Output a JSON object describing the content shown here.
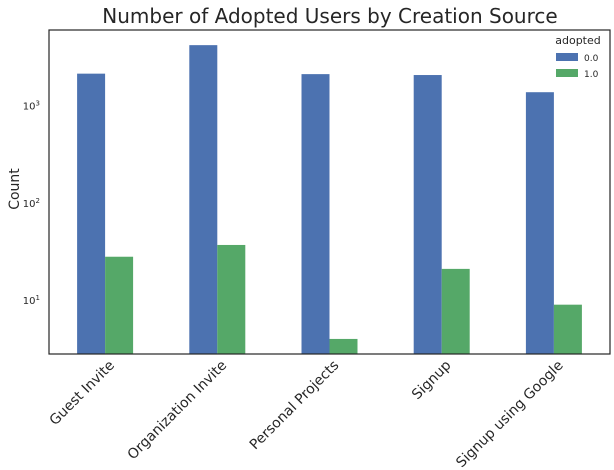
{
  "chart_data": {
    "type": "bar",
    "title": "Number of Adopted Users by Creation Source",
    "xlabel": "",
    "ylabel": "Count",
    "yscale": "log",
    "ylim": [
      2.8,
      6000
    ],
    "y_ticks": [
      {
        "value": 10,
        "base": "10",
        "exp": "1"
      },
      {
        "value": 100,
        "base": "10",
        "exp": "2"
      },
      {
        "value": 1000,
        "base": "10",
        "exp": "3"
      }
    ],
    "categories": [
      "Guest Invite",
      "Organization Invite",
      "Personal Projects",
      "Signup",
      "Signup using Google"
    ],
    "legend": {
      "title": "adopted",
      "placement": "top-right"
    },
    "series": [
      {
        "name": "0.0",
        "color": "#4c72b0",
        "values": [
          2135,
          4192,
          2111,
          2066,
          1376
        ]
      },
      {
        "name": "1.0",
        "color": "#55a868",
        "values": [
          28,
          37,
          4,
          21,
          9
        ]
      }
    ],
    "grid": false
  }
}
